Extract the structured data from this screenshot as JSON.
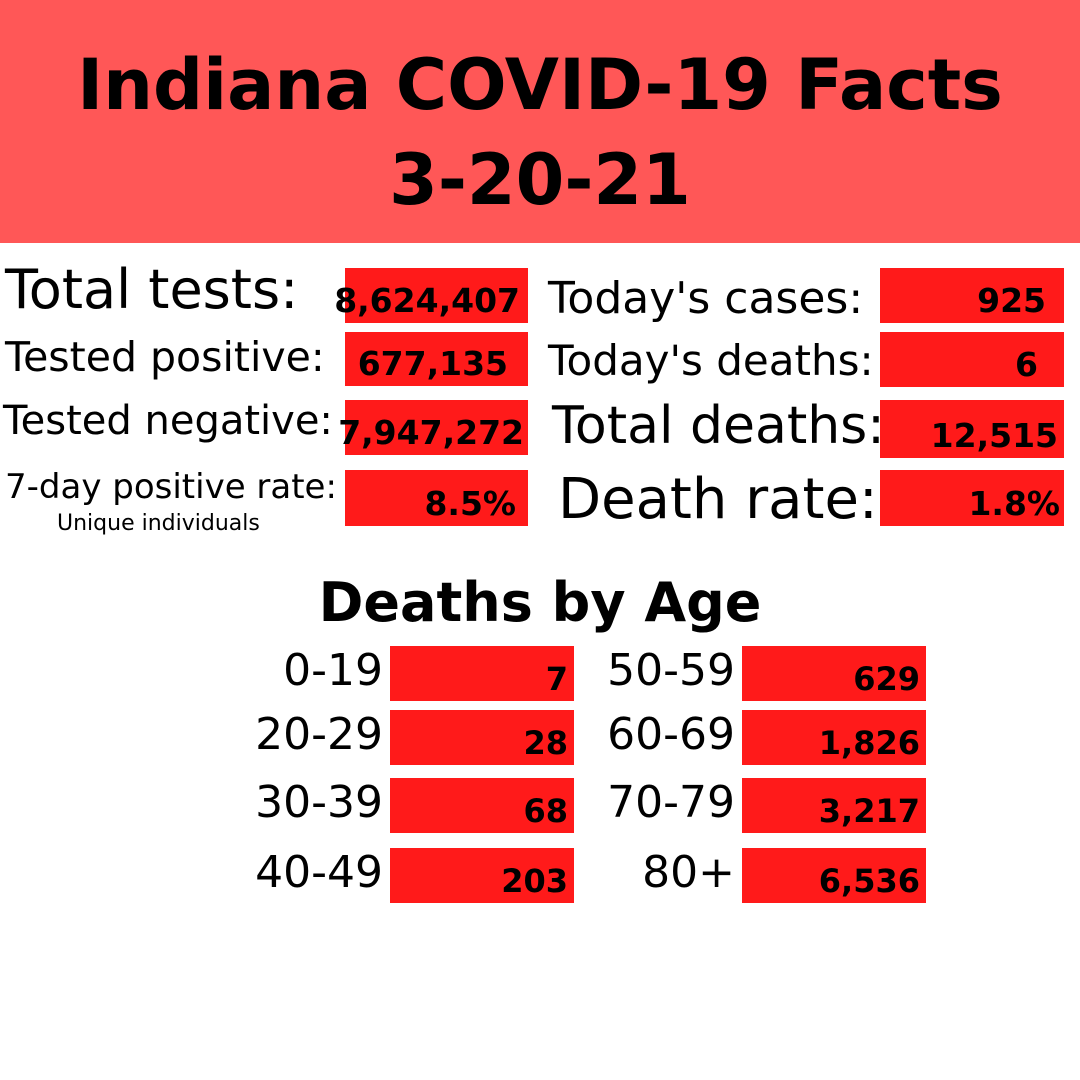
{
  "header": {
    "title_line1": "Indiana COVID-19 Facts",
    "title_line2": "3-20-21",
    "color": "#FF5757"
  },
  "box_color": "#FF1A1A",
  "stats_left": [
    {
      "label": "Total tests:",
      "value": "8,624,407"
    },
    {
      "label": "Tested positive:",
      "value": "677,135"
    },
    {
      "label": "Tested negative:",
      "value": "7,947,272"
    },
    {
      "label": "7-day positive rate:",
      "sublabel": "Unique individuals",
      "value": "8.5%"
    }
  ],
  "stats_right": [
    {
      "label": "Today's cases:",
      "value": "925"
    },
    {
      "label": "Today's deaths:",
      "value": "6"
    },
    {
      "label": "Total deaths:",
      "value": "12,515"
    },
    {
      "label": "Death rate:",
      "value": "1.8%"
    }
  ],
  "deaths_by_age": {
    "title": "Deaths by Age",
    "left": [
      {
        "age": "0-19",
        "value": "7"
      },
      {
        "age": "20-29",
        "value": "28"
      },
      {
        "age": "30-39",
        "value": "68"
      },
      {
        "age": "40-49",
        "value": "203"
      }
    ],
    "right": [
      {
        "age": "50-59",
        "value": "629"
      },
      {
        "age": "60-69",
        "value": "1,826"
      },
      {
        "age": "70-79",
        "value": "3,217"
      },
      {
        "age": "80+",
        "value": "6,536"
      }
    ]
  }
}
